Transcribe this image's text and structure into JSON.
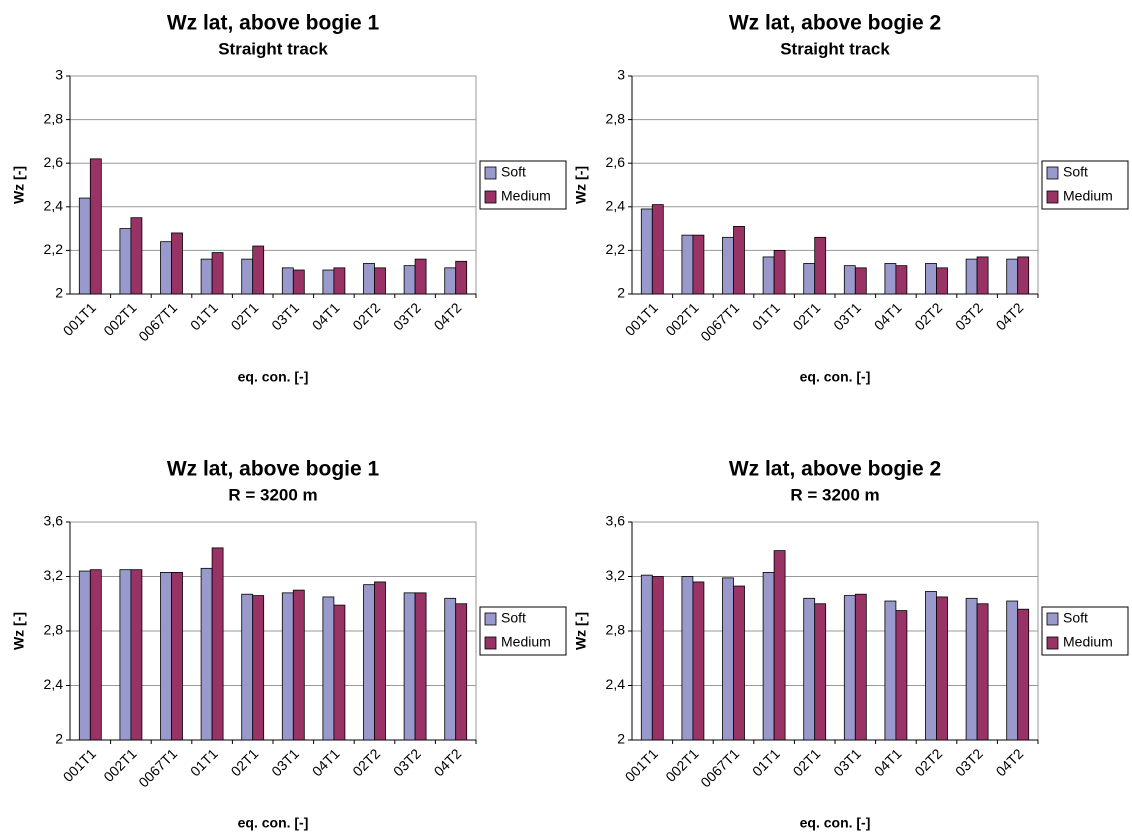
{
  "chart_data": [
    {
      "type": "bar",
      "title": "Wz lat, above bogie 1",
      "subtitle": "Straight track",
      "x_label": "eq. con. [-]",
      "y_label": "Wz [-]",
      "categories": [
        "001T1",
        "002T1",
        "0067T1",
        "01T1",
        "02T1",
        "03T1",
        "04T1",
        "02T2",
        "03T2",
        "04T2"
      ],
      "series": [
        {
          "name": "Soft",
          "color": "#9999cc",
          "values": [
            2.44,
            2.3,
            2.24,
            2.16,
            2.16,
            2.12,
            2.11,
            2.14,
            2.13,
            2.12
          ]
        },
        {
          "name": "Medium",
          "color": "#993366",
          "values": [
            2.62,
            2.35,
            2.28,
            2.19,
            2.22,
            2.11,
            2.12,
            2.12,
            2.16,
            2.15
          ]
        }
      ],
      "ylim": [
        2,
        3
      ],
      "yticks": [
        2,
        {
          "value": 2.2,
          "label": "2,2"
        },
        {
          "value": 2.4,
          "label": "2,4"
        },
        {
          "value": 2.6,
          "label": "2,6"
        },
        {
          "value": 2.8,
          "label": "2,8"
        },
        3
      ],
      "grid": true,
      "legend": "right"
    },
    {
      "type": "bar",
      "title": "Wz lat, above bogie 2",
      "subtitle": "Straight track",
      "x_label": "eq. con. [-]",
      "y_label": "Wz [-]",
      "categories": [
        "001T1",
        "002T1",
        "0067T1",
        "01T1",
        "02T1",
        "03T1",
        "04T1",
        "02T2",
        "03T2",
        "04T2"
      ],
      "series": [
        {
          "name": "Soft",
          "color": "#9999cc",
          "values": [
            2.39,
            2.27,
            2.26,
            2.17,
            2.14,
            2.13,
            2.14,
            2.14,
            2.16,
            2.16
          ]
        },
        {
          "name": "Medium",
          "color": "#993366",
          "values": [
            2.41,
            2.27,
            2.31,
            2.2,
            2.26,
            2.12,
            2.13,
            2.12,
            2.17,
            2.17
          ]
        }
      ],
      "ylim": [
        2,
        3
      ],
      "yticks": [
        2,
        {
          "value": 2.2,
          "label": "2,2"
        },
        {
          "value": 2.4,
          "label": "2,4"
        },
        {
          "value": 2.6,
          "label": "2,6"
        },
        {
          "value": 2.8,
          "label": "2,8"
        },
        3
      ],
      "grid": true,
      "legend": "right"
    },
    {
      "type": "bar",
      "title": "Wz lat, above bogie 1",
      "subtitle": "R = 3200 m",
      "x_label": "eq. con. [-]",
      "y_label": "Wz [-]",
      "categories": [
        "001T1",
        "002T1",
        "0067T1",
        "01T1",
        "02T1",
        "03T1",
        "04T1",
        "02T2",
        "03T2",
        "04T2"
      ],
      "series": [
        {
          "name": "Soft",
          "color": "#9999cc",
          "values": [
            3.24,
            3.25,
            3.23,
            3.26,
            3.07,
            3.08,
            3.05,
            3.14,
            3.08,
            3.04
          ]
        },
        {
          "name": "Medium",
          "color": "#993366",
          "values": [
            3.25,
            3.25,
            3.23,
            3.41,
            3.06,
            3.1,
            2.99,
            3.16,
            3.08,
            3.0
          ]
        }
      ],
      "ylim": [
        2,
        3.6
      ],
      "yticks": [
        2,
        {
          "value": 2.4,
          "label": "2,4"
        },
        {
          "value": 2.8,
          "label": "2,8"
        },
        {
          "value": 3.2,
          "label": "3,2"
        },
        {
          "value": 3.6,
          "label": "3,6"
        }
      ],
      "grid": true,
      "legend": "right"
    },
    {
      "type": "bar",
      "title": "Wz lat, above bogie 2",
      "subtitle": "R = 3200 m",
      "x_label": "eq. con. [-]",
      "y_label": "Wz [-]",
      "categories": [
        "001T1",
        "002T1",
        "0067T1",
        "01T1",
        "02T1",
        "03T1",
        "04T1",
        "02T2",
        "03T2",
        "04T2"
      ],
      "series": [
        {
          "name": "Soft",
          "color": "#9999cc",
          "values": [
            3.21,
            3.2,
            3.19,
            3.23,
            3.04,
            3.06,
            3.02,
            3.09,
            3.04,
            3.02
          ]
        },
        {
          "name": "Medium",
          "color": "#993366",
          "values": [
            3.2,
            3.16,
            3.13,
            3.39,
            3.0,
            3.07,
            2.95,
            3.05,
            3.0,
            2.96
          ]
        }
      ],
      "ylim": [
        2,
        3.6
      ],
      "yticks": [
        2,
        {
          "value": 2.4,
          "label": "2,4"
        },
        {
          "value": 2.8,
          "label": "2,8"
        },
        {
          "value": 3.2,
          "label": "3,2"
        },
        {
          "value": 3.6,
          "label": "3,6"
        }
      ],
      "grid": true,
      "legend": "right"
    }
  ]
}
